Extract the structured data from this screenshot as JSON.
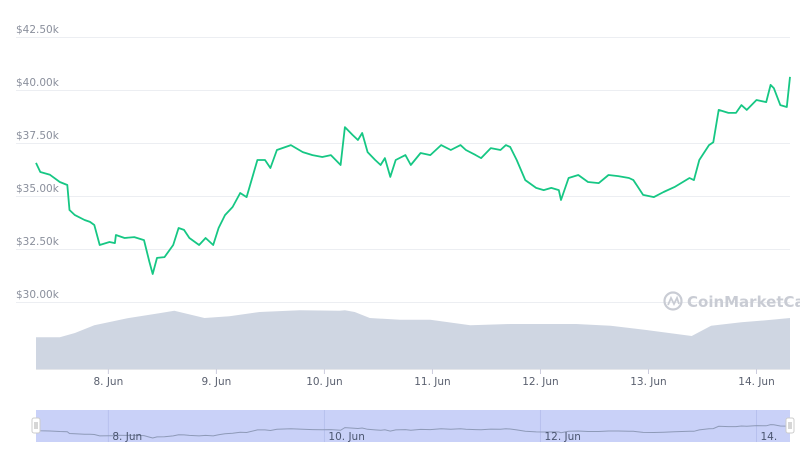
{
  "chart_data": {
    "type": "line",
    "title": "",
    "xlabel": "",
    "ylabel": "",
    "watermark": "CoinMarketCap",
    "ylim": [
      30000,
      42500
    ],
    "y_ticks": [
      "$30.00k",
      "$32.50k",
      "$35.00k",
      "$37.50k",
      "$40.00k",
      "$42.50k"
    ],
    "y_tick_values": [
      30000,
      32500,
      35000,
      37500,
      40000,
      42500
    ],
    "x_ticks": [
      "8. Jun",
      "9. Jun",
      "10. Jun",
      "11. Jun",
      "12. Jun",
      "13. Jun",
      "14. Jun"
    ],
    "x_range_days": [
      -0.67,
      6.31
    ],
    "navigator_ticks": [
      "8. Jun",
      "10. Jun",
      "12. Jun",
      "14."
    ],
    "navigator_tick_days": [
      0,
      2,
      4,
      6
    ],
    "grid": true,
    "colors": {
      "price_line": "#16c784",
      "volume_fill": "#cfd6e2",
      "navigator_fill": "#c9d1f8",
      "navigator_line": "#8e9ab8",
      "grid": "#eceef2"
    },
    "price_series": {
      "x_days_since_8_jun": [
        -0.67,
        -0.63,
        -0.54,
        -0.45,
        -0.38,
        -0.36,
        -0.31,
        -0.22,
        -0.17,
        -0.13,
        -0.08,
        0.01,
        0.06,
        0.07,
        0.15,
        0.24,
        0.33,
        0.38,
        0.41,
        0.45,
        0.52,
        0.6,
        0.65,
        0.7,
        0.75,
        0.84,
        0.9,
        0.97,
        1.02,
        1.08,
        1.15,
        1.22,
        1.28,
        1.38,
        1.45,
        1.5,
        1.56,
        1.69,
        1.8,
        1.89,
        1.98,
        2.06,
        2.15,
        2.19,
        2.26,
        2.31,
        2.35,
        2.4,
        2.47,
        2.52,
        2.56,
        2.61,
        2.66,
        2.75,
        2.8,
        2.89,
        2.98,
        3.08,
        3.17,
        3.26,
        3.31,
        3.4,
        3.45,
        3.54,
        3.63,
        3.68,
        3.72,
        3.78,
        3.86,
        3.96,
        4.03,
        4.1,
        4.17,
        4.19,
        4.26,
        4.35,
        4.44,
        4.54,
        4.63,
        4.72,
        4.82,
        4.86,
        4.95,
        5.05,
        5.14,
        5.24,
        5.38,
        5.42,
        5.47,
        5.56,
        5.6,
        5.65,
        5.74,
        5.81,
        5.86,
        5.91,
        6.0,
        6.09,
        6.13,
        6.16,
        6.22,
        6.28,
        6.31
      ],
      "price": [
        36560,
        36130,
        36000,
        35660,
        35520,
        34340,
        34100,
        33870,
        33780,
        33630,
        32690,
        32830,
        32780,
        33160,
        33020,
        33060,
        32920,
        31890,
        31320,
        32080,
        32120,
        32690,
        33490,
        33400,
        33020,
        32690,
        33020,
        32690,
        33490,
        34100,
        34480,
        35140,
        34950,
        36700,
        36700,
        36320,
        37170,
        37400,
        37070,
        36930,
        36840,
        36930,
        36460,
        38250,
        37880,
        37640,
        37970,
        37070,
        36700,
        36460,
        36790,
        35900,
        36700,
        36930,
        36460,
        37030,
        36930,
        37400,
        37170,
        37400,
        37170,
        36930,
        36790,
        37260,
        37170,
        37400,
        37310,
        36700,
        35750,
        35380,
        35280,
        35380,
        35280,
        34810,
        35850,
        35990,
        35660,
        35610,
        35990,
        35940,
        35850,
        35750,
        35050,
        34950,
        35190,
        35420,
        35850,
        35750,
        36700,
        37400,
        37540,
        39060,
        38920,
        38920,
        39290,
        39060,
        39530,
        39430,
        40240,
        40090,
        39290,
        39200,
        40620
      ]
    },
    "volume_series": {
      "unit": "relative to volume panel height",
      "x_days_since_8_jun": [
        -0.67,
        -0.45,
        -0.31,
        -0.13,
        0.19,
        0.47,
        0.61,
        0.89,
        1.12,
        1.4,
        1.77,
        2.14,
        2.19,
        2.28,
        2.42,
        2.7,
        2.98,
        3.35,
        3.72,
        4.0,
        4.33,
        4.65,
        4.98,
        5.4,
        5.58,
        5.86,
        6.14,
        6.31
      ],
      "level": [
        0.53,
        0.53,
        0.6,
        0.73,
        0.85,
        0.93,
        0.97,
        0.85,
        0.88,
        0.95,
        0.98,
        0.97,
        0.98,
        0.95,
        0.85,
        0.82,
        0.82,
        0.73,
        0.75,
        0.75,
        0.75,
        0.72,
        0.65,
        0.55,
        0.72,
        0.78,
        0.82,
        0.85
      ]
    }
  }
}
